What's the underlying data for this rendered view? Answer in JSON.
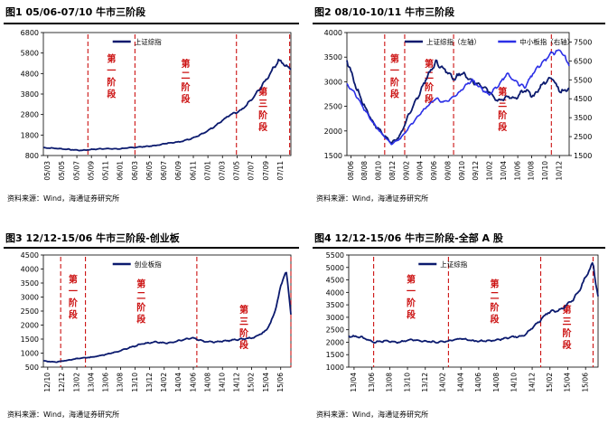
{
  "source_note": "资料来源：Wind，海通证券研究所",
  "colors": {
    "navy": "#0b1a6e",
    "blue": "#2b2fe6",
    "phase_red": "#cc1111"
  },
  "chart_data": [
    {
      "id": "p1",
      "type": "line",
      "title": "图1  05/06-07/10 牛市三阶段",
      "series": [
        {
          "name": "上证综指",
          "color": "#0b1a6e",
          "axis": "left",
          "t": [
            0,
            5,
            10,
            15,
            20,
            25,
            30,
            35,
            40,
            45,
            50,
            55,
            60,
            65,
            70,
            75,
            80,
            85,
            90,
            95,
            100
          ],
          "values": [
            1180,
            1150,
            1100,
            1050,
            1100,
            1140,
            1120,
            1180,
            1230,
            1280,
            1400,
            1470,
            1640,
            1900,
            2300,
            2750,
            3000,
            3650,
            4500,
            5450,
            5000
          ]
        }
      ],
      "ylim": [
        800,
        6800
      ],
      "yticks": [
        "800",
        "1800",
        "2800",
        "3800",
        "4800",
        "5800",
        "6800"
      ],
      "xticks": [
        "05/03",
        "05/05",
        "05/07",
        "05/09",
        "05/11",
        "06/01",
        "06/03",
        "06/05",
        "06/07",
        "06/09",
        "06/11",
        "07/01",
        "07/03",
        "07/05",
        "07/07",
        "07/09",
        "07/11"
      ],
      "phase_lines_t": [
        18,
        37,
        78,
        99.5
      ],
      "phase_labels": [
        "第一阶段",
        "第二阶段",
        "第三阶段"
      ],
      "legend": "top"
    },
    {
      "id": "p2",
      "type": "line",
      "title": "图2  08/10-10/11 牛市三阶段",
      "series": [
        {
          "name": "上证综指（左轴）",
          "color": "#0b1a6e",
          "axis": "left",
          "t": [
            0,
            4,
            8,
            12,
            16,
            20,
            24,
            28,
            32,
            36,
            40,
            44,
            48,
            52,
            56,
            60,
            64,
            68,
            72,
            76,
            80,
            84,
            88,
            92,
            96,
            100
          ],
          "values": [
            3450,
            2900,
            2500,
            2150,
            1950,
            1750,
            1900,
            2350,
            2700,
            3100,
            3400,
            3250,
            3050,
            3200,
            3000,
            2950,
            2800,
            2600,
            2700,
            2650,
            2850,
            2700,
            2950,
            3100,
            2800,
            2850
          ]
        },
        {
          "name": "中小板指（右轴）",
          "color": "#2b2fe6",
          "axis": "right",
          "t": [
            0,
            4,
            8,
            12,
            16,
            20,
            24,
            28,
            32,
            36,
            40,
            44,
            48,
            52,
            56,
            60,
            64,
            68,
            72,
            76,
            80,
            84,
            88,
            92,
            96,
            100
          ],
          "values": [
            5300,
            4700,
            3900,
            3200,
            2600,
            2100,
            2400,
            3000,
            3600,
            4100,
            4500,
            4300,
            4600,
            5000,
            5500,
            5100,
            4700,
            5200,
            5800,
            5400,
            5100,
            5900,
            6400,
            6900,
            7100,
            6300
          ]
        }
      ],
      "ylim_left": [
        1500,
        4000
      ],
      "yticks_left": [
        "1500",
        "2000",
        "2500",
        "3000",
        "3500",
        "4000"
      ],
      "ylim_right": [
        1500,
        8000
      ],
      "yticks_right": [
        "1500",
        "2500",
        "3500",
        "4500",
        "5500",
        "6500",
        "7500"
      ],
      "xticks": [
        "08/06",
        "08/08",
        "08/10",
        "08/12",
        "09/02",
        "09/04",
        "09/06",
        "09/08",
        "09/10",
        "09/12",
        "10/02",
        "10/04",
        "10/06",
        "10/08",
        "10/10",
        "10/12"
      ],
      "phase_lines_t": [
        17,
        26,
        48,
        92
      ],
      "phase_labels": [
        "第一阶段",
        "第二阶段",
        "第三阶段"
      ],
      "legend": "top"
    },
    {
      "id": "p3",
      "type": "line",
      "title": "图3  12/12-15/06 牛市三阶段-创业板",
      "series": [
        {
          "name": "创业板指",
          "color": "#0b1a6e",
          "axis": "left",
          "t": [
            0,
            5,
            10,
            15,
            20,
            25,
            30,
            35,
            40,
            45,
            50,
            55,
            60,
            65,
            70,
            75,
            80,
            85,
            90,
            93,
            96,
            98,
            100
          ],
          "values": [
            720,
            680,
            750,
            820,
            860,
            950,
            1050,
            1200,
            1330,
            1400,
            1350,
            1450,
            1550,
            1420,
            1400,
            1450,
            1500,
            1550,
            1800,
            2300,
            3400,
            4000,
            2400
          ]
        }
      ],
      "ylim": [
        500,
        4500
      ],
      "yticks": [
        "500",
        "1000",
        "1500",
        "2000",
        "2500",
        "3000",
        "3500",
        "4000",
        "4500"
      ],
      "xticks": [
        "12/10",
        "12/12",
        "13/02",
        "13/04",
        "13/06",
        "13/08",
        "13/10",
        "13/12",
        "14/02",
        "14/04",
        "14/06",
        "14/08",
        "14/10",
        "14/12",
        "15/02",
        "15/04",
        "15/06"
      ],
      "phase_lines_t": [
        7,
        17,
        62,
        100
      ],
      "phase_labels": [
        "第一阶段",
        "第二阶段",
        "第三阶段"
      ],
      "legend": "top"
    },
    {
      "id": "p4",
      "type": "line",
      "title": "图4  12/12-15/06 牛市三阶段-全部 A 股",
      "series": [
        {
          "name": "上证综指",
          "color": "#0b1a6e",
          "axis": "left",
          "t": [
            0,
            5,
            10,
            15,
            20,
            25,
            30,
            35,
            40,
            45,
            50,
            55,
            60,
            65,
            70,
            75,
            80,
            85,
            90,
            93,
            96,
            98,
            100
          ],
          "values": [
            2250,
            2200,
            2000,
            2050,
            2000,
            2100,
            2050,
            2000,
            2050,
            2150,
            2050,
            2050,
            2100,
            2200,
            2250,
            2700,
            3200,
            3300,
            3700,
            4200,
            4800,
            5150,
            3800
          ]
        }
      ],
      "ylim": [
        1000,
        5500
      ],
      "yticks": [
        "1000",
        "1500",
        "2000",
        "2500",
        "3000",
        "3500",
        "4000",
        "4500",
        "5000",
        "5500"
      ],
      "xticks": [
        "13/04",
        "13/06",
        "13/08",
        "13/10",
        "13/12",
        "14/02",
        "14/04",
        "14/06",
        "14/08",
        "14/10",
        "14/12",
        "15/02",
        "15/04",
        "15/06"
      ],
      "phase_lines_t": [
        10,
        40,
        77,
        98
      ],
      "phase_labels": [
        "第一阶段",
        "第二阶段",
        "第三阶段"
      ],
      "legend": "top"
    }
  ]
}
